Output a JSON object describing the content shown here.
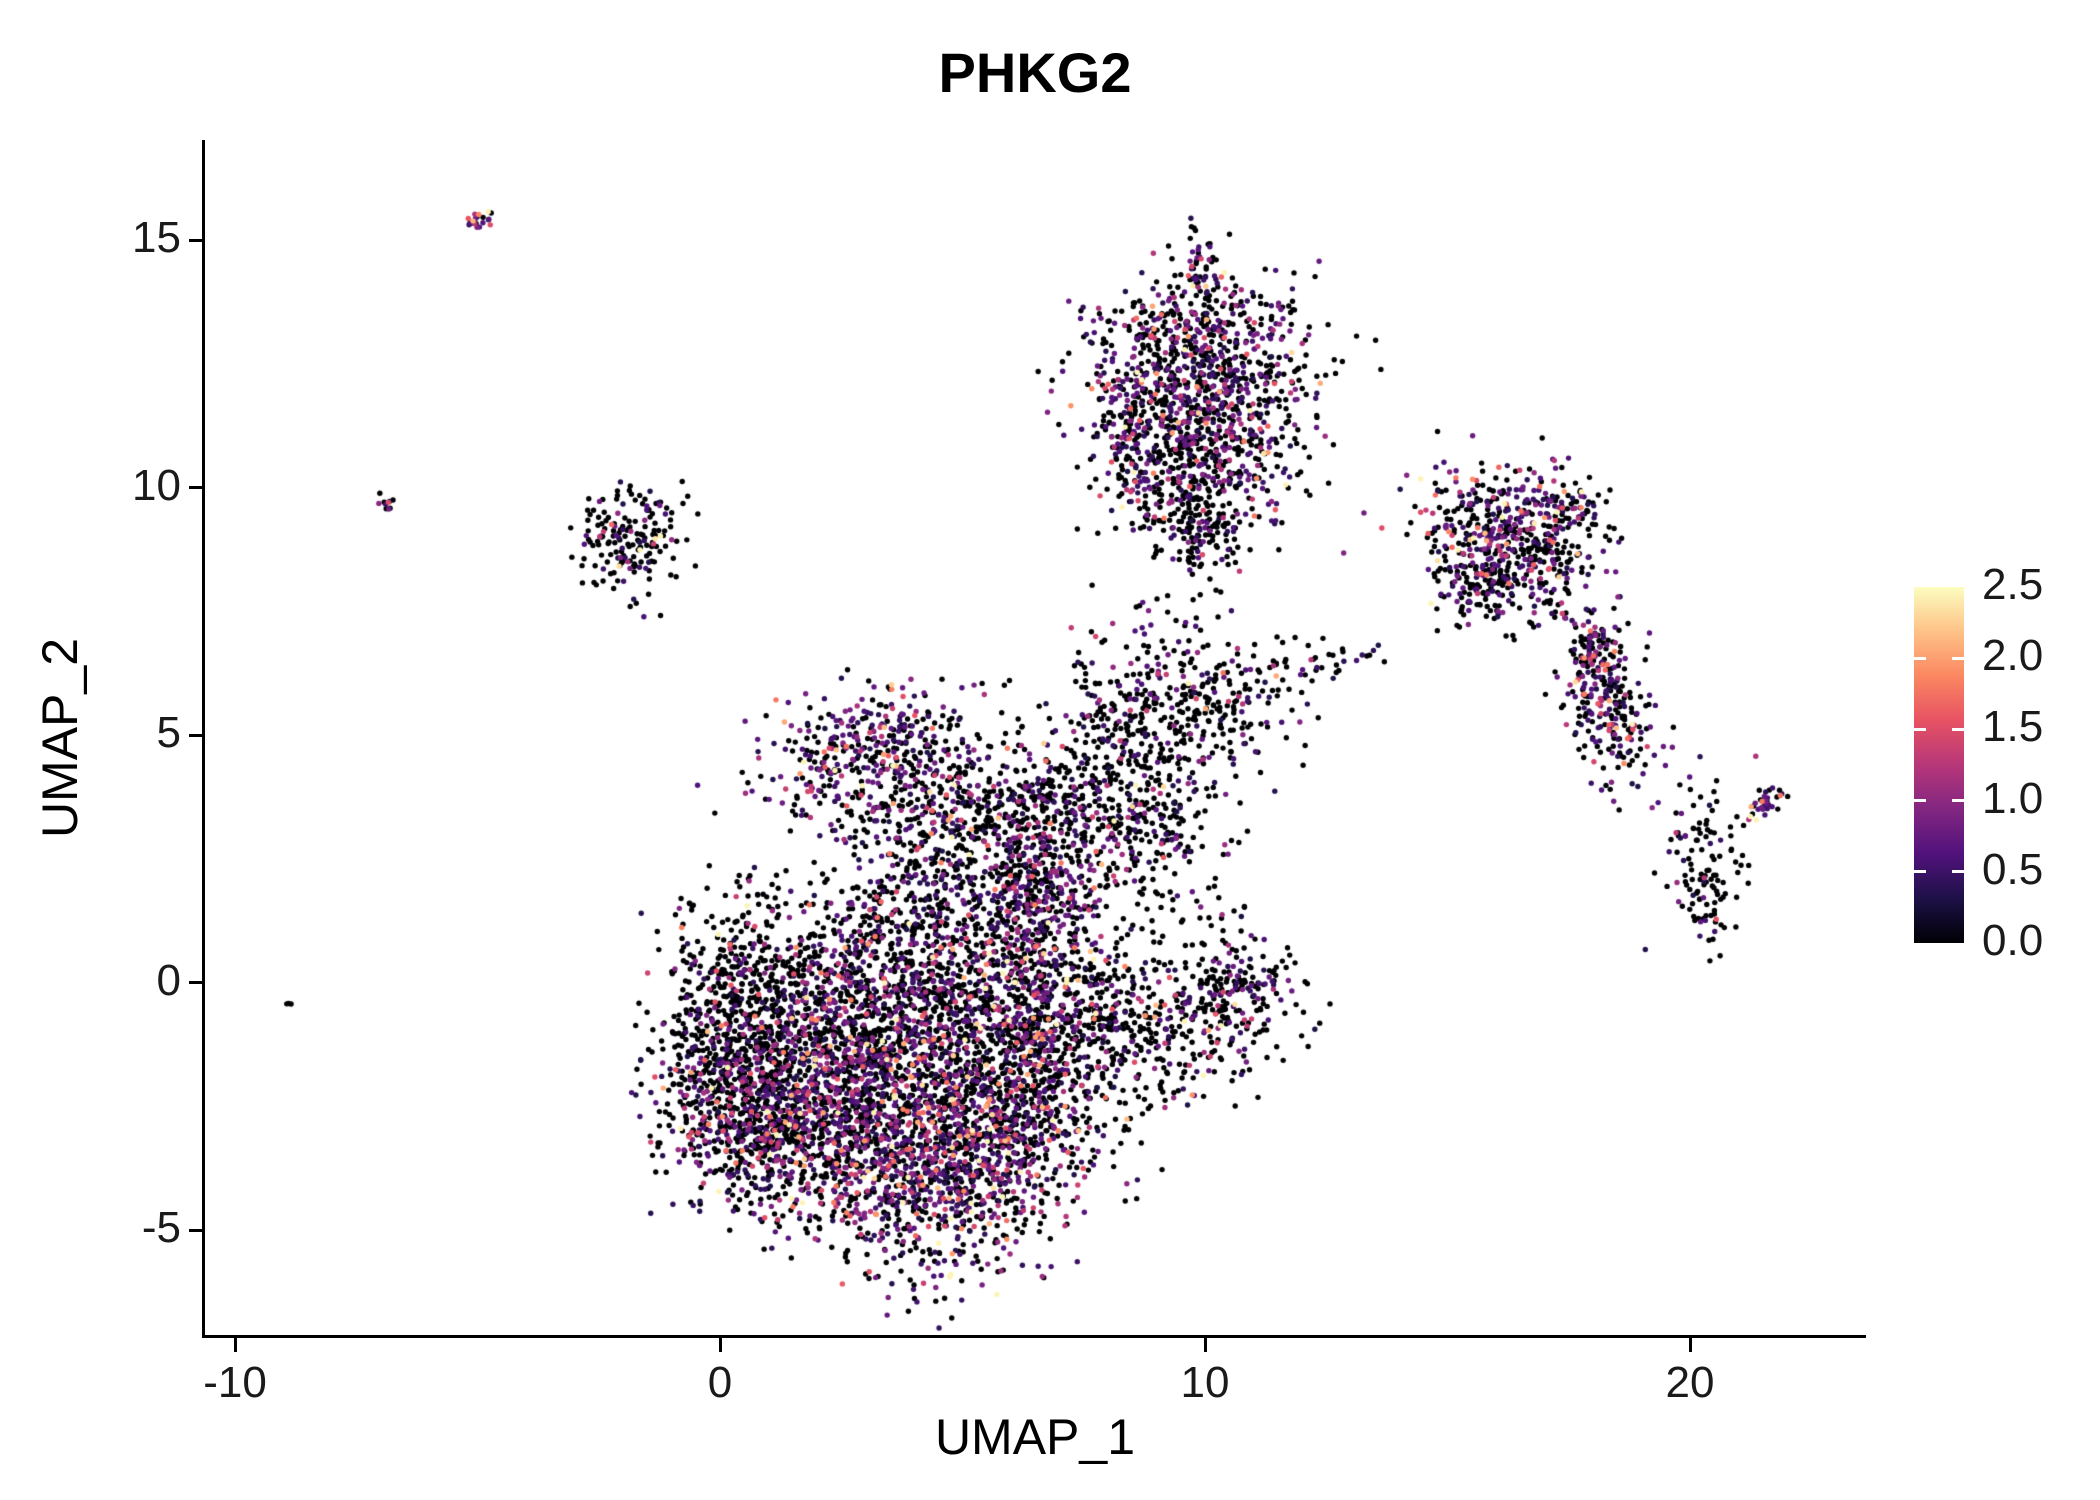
{
  "chart_data": {
    "type": "scatter",
    "title": "PHKG2",
    "xlabel": "UMAP_1",
    "ylabel": "UMAP_2",
    "xlim": [
      -11,
      24
    ],
    "ylim": [
      -7.2,
      17.1
    ],
    "grid": false,
    "legend_position": "right",
    "xticks": [
      -10,
      0,
      10,
      20
    ],
    "xtick_labels": [
      "-10",
      "0",
      "10",
      "20"
    ],
    "yticks": [
      -5,
      0,
      5,
      10,
      15
    ],
    "ytick_labels": [
      "-5",
      "0",
      "5",
      "10",
      "15"
    ],
    "colorbar": {
      "vmin": 0.0,
      "vmax": 2.5,
      "tick_values": [
        2.5,
        2.0,
        1.5,
        1.0,
        0.5,
        0.0
      ],
      "tick_labels": [
        "2.5",
        "2.0",
        "1.5",
        "1.0",
        "0.5",
        "0.0"
      ]
    },
    "colormap": {
      "name": "magma",
      "stops": [
        {
          "t": 0.0,
          "color": "#000004"
        },
        {
          "t": 0.125,
          "color": "#1d1147"
        },
        {
          "t": 0.25,
          "color": "#51127c"
        },
        {
          "t": 0.375,
          "color": "#822681"
        },
        {
          "t": 0.5,
          "color": "#b73779"
        },
        {
          "t": 0.625,
          "color": "#e75263"
        },
        {
          "t": 0.75,
          "color": "#fb8761"
        },
        {
          "t": 0.875,
          "color": "#fec287"
        },
        {
          "t": 1.0,
          "color": "#fcfdbf"
        }
      ]
    },
    "point_color_zero": "#000004",
    "clusters": [
      {
        "cx": 0.4,
        "cy": -1.0,
        "sx": 0.85,
        "sy": 1.4,
        "rot": 0,
        "n": 850,
        "pos_frac": 0.22,
        "expr_scale": 0.5
      },
      {
        "cx": 1.1,
        "cy": -2.9,
        "sx": 1.0,
        "sy": 0.8,
        "rot": -20,
        "n": 600,
        "pos_frac": 0.5,
        "expr_scale": 0.62
      },
      {
        "cx": 2.6,
        "cy": -1.6,
        "sx": 1.0,
        "sy": 1.2,
        "rot": 0,
        "n": 700,
        "pos_frac": 0.45,
        "expr_scale": 0.6
      },
      {
        "cx": 4.3,
        "cy": -3.6,
        "sx": 1.3,
        "sy": 1.1,
        "rot": 0,
        "n": 1100,
        "pos_frac": 0.55,
        "expr_scale": 0.62
      },
      {
        "cx": 4.4,
        "cy": -0.2,
        "sx": 1.6,
        "sy": 1.5,
        "rot": 0,
        "n": 1500,
        "pos_frac": 0.38,
        "expr_scale": 0.55
      },
      {
        "cx": 3.1,
        "cy": 4.7,
        "sx": 1.05,
        "sy": 0.65,
        "rot": 10,
        "n": 320,
        "pos_frac": 0.5,
        "expr_scale": 0.5
      },
      {
        "cx": 4.9,
        "cy": 3.3,
        "sx": 1.4,
        "sy": 1.0,
        "rot": 0,
        "n": 550,
        "pos_frac": 0.32,
        "expr_scale": 0.5
      },
      {
        "cx": 6.6,
        "cy": 1.2,
        "sx": 0.55,
        "sy": 1.7,
        "rot": 0,
        "n": 480,
        "pos_frac": 0.55,
        "expr_scale": 0.5
      },
      {
        "cx": 6.2,
        "cy": -2.4,
        "sx": 0.95,
        "sy": 1.1,
        "rot": 0,
        "n": 450,
        "pos_frac": 0.35,
        "expr_scale": 0.55
      },
      {
        "cx": 8.4,
        "cy": 3.4,
        "sx": 0.95,
        "sy": 0.95,
        "rot": 0,
        "n": 420,
        "pos_frac": 0.3,
        "expr_scale": 0.5
      },
      {
        "cx": 8.3,
        "cy": -0.8,
        "sx": 1.1,
        "sy": 0.95,
        "rot": 0,
        "n": 420,
        "pos_frac": 0.32,
        "expr_scale": 0.55
      },
      {
        "cx": 10.7,
        "cy": -0.3,
        "sx": 0.65,
        "sy": 0.75,
        "rot": 0,
        "n": 220,
        "pos_frac": 0.3,
        "expr_scale": 0.5
      },
      {
        "cx": 9.8,
        "cy": 5.5,
        "sx": 0.95,
        "sy": 0.75,
        "rot": 0,
        "n": 260,
        "pos_frac": 0.22,
        "expr_scale": 0.5
      },
      {
        "cx": 12.6,
        "cy": 6.5,
        "sx": 0.3,
        "sy": 0.2,
        "rot": 0,
        "n": 14,
        "pos_frac": 0.5,
        "expr_scale": 0.6
      },
      {
        "cx": 9.9,
        "cy": 12.3,
        "sx": 1.15,
        "sy": 0.95,
        "rot": 0,
        "n": 850,
        "pos_frac": 0.45,
        "expr_scale": 0.5
      },
      {
        "cx": 9.8,
        "cy": 10.4,
        "sx": 0.95,
        "sy": 0.75,
        "rot": 0,
        "n": 420,
        "pos_frac": 0.32,
        "expr_scale": 0.5
      },
      {
        "cx": 9.9,
        "cy": 9.0,
        "sx": 0.4,
        "sy": 0.45,
        "rot": 0,
        "n": 110,
        "pos_frac": 0.22,
        "expr_scale": 0.5
      },
      {
        "cx": 9.85,
        "cy": 14.35,
        "sx": 0.22,
        "sy": 0.33,
        "rot": 0,
        "n": 55,
        "pos_frac": 0.5,
        "expr_scale": 0.55
      },
      {
        "cx": 8.35,
        "cy": 11.3,
        "sx": 0.22,
        "sy": 0.75,
        "rot": 15,
        "n": 70,
        "pos_frac": 0.6,
        "expr_scale": 0.6
      },
      {
        "cx": 16.3,
        "cy": 9.0,
        "sx": 0.95,
        "sy": 0.7,
        "rot": -15,
        "n": 520,
        "pos_frac": 0.5,
        "expr_scale": 0.55
      },
      {
        "cx": 15.75,
        "cy": 7.95,
        "sx": 0.45,
        "sy": 0.4,
        "rot": 0,
        "n": 110,
        "pos_frac": 0.35,
        "expr_scale": 0.5
      },
      {
        "cx": 17.7,
        "cy": 9.55,
        "sx": 0.3,
        "sy": 0.2,
        "rot": 20,
        "n": 40,
        "pos_frac": 0.65,
        "expr_scale": 0.7
      },
      {
        "cx": 18.3,
        "cy": 5.6,
        "sx": 0.45,
        "sy": 0.85,
        "rot": 15,
        "n": 260,
        "pos_frac": 0.55,
        "expr_scale": 0.6
      },
      {
        "cx": 17.95,
        "cy": 6.85,
        "sx": 0.25,
        "sy": 0.3,
        "rot": 0,
        "n": 50,
        "pos_frac": 0.5,
        "expr_scale": 0.55
      },
      {
        "cx": 20.3,
        "cy": 2.5,
        "sx": 0.4,
        "sy": 0.75,
        "rot": 0,
        "n": 110,
        "pos_frac": 0.18,
        "expr_scale": 0.5
      },
      {
        "cx": 21.5,
        "cy": 3.6,
        "sx": 0.28,
        "sy": 0.12,
        "rot": 35,
        "n": 35,
        "pos_frac": 0.7,
        "expr_scale": 0.6
      },
      {
        "cx": 20.4,
        "cy": 1.2,
        "sx": 0.2,
        "sy": 0.15,
        "rot": 0,
        "n": 12,
        "pos_frac": 0.25,
        "expr_scale": 0.5
      },
      {
        "cx": -1.75,
        "cy": 8.9,
        "sx": 0.55,
        "sy": 0.55,
        "rot": -20,
        "n": 170,
        "pos_frac": 0.25,
        "expr_scale": 0.6
      },
      {
        "cx": -2.55,
        "cy": 9.0,
        "sx": 0.18,
        "sy": 0.12,
        "rot": 0,
        "n": 12,
        "pos_frac": 0.7,
        "expr_scale": 0.9
      },
      {
        "cx": -4.95,
        "cy": 15.4,
        "sx": 0.16,
        "sy": 0.07,
        "rot": 35,
        "n": 22,
        "pos_frac": 0.75,
        "expr_scale": 0.6
      },
      {
        "cx": -6.8,
        "cy": 9.72,
        "sx": 0.1,
        "sy": 0.13,
        "rot": 30,
        "n": 10,
        "pos_frac": 0.7,
        "expr_scale": 0.7
      },
      {
        "cx": -8.85,
        "cy": -0.42,
        "sx": 0.06,
        "sy": 0.06,
        "rot": 0,
        "n": 3,
        "pos_frac": 0.6,
        "expr_scale": 0.55
      },
      {
        "cx": 9.0,
        "cy": 7.3,
        "sx": 0.8,
        "sy": 0.6,
        "rot": 0,
        "n": 25,
        "pos_frac": 0.3,
        "expr_scale": 0.5
      },
      {
        "cx": 13.3,
        "cy": 6.6,
        "sx": 0.4,
        "sy": 0.15,
        "rot": 0,
        "n": 8,
        "pos_frac": 0.4,
        "expr_scale": 0.5
      },
      {
        "cx": 11.3,
        "cy": 6.3,
        "sx": 0.5,
        "sy": 0.4,
        "rot": 0,
        "n": 30,
        "pos_frac": 0.3,
        "expr_scale": 0.5
      },
      {
        "cx": 8.1,
        "cy": 5.8,
        "sx": 0.5,
        "sy": 0.5,
        "rot": 0,
        "n": 60,
        "pos_frac": 0.3,
        "expr_scale": 0.5
      }
    ]
  }
}
